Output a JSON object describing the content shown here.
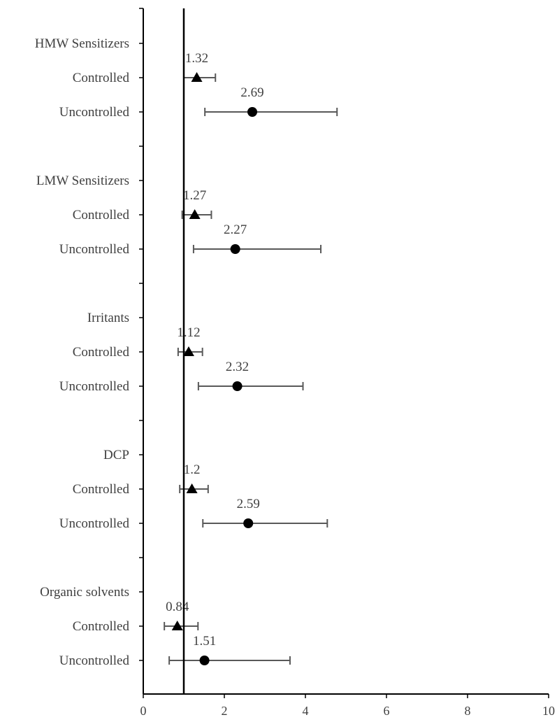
{
  "chart_data": {
    "type": "scatter",
    "subtype": "forest-plot",
    "title": "",
    "xlabel": "",
    "ylabel": "",
    "xlim": [
      0,
      10
    ],
    "x_ticks": [
      0,
      2,
      4,
      6,
      8,
      10
    ],
    "x_tick_labels": [
      "0",
      "2",
      "4",
      "6",
      "8",
      "10"
    ],
    "reference_line_x": 1,
    "grid": false,
    "legend": "none",
    "colors": {
      "marker": "#000000",
      "error_bar": "#595959",
      "axis": "#000000",
      "text": "#404040"
    },
    "groups": [
      {
        "name": "HMW Sensitizers",
        "rows": [
          {
            "label": "Controlled",
            "marker": "triangle",
            "estimate": 1.32,
            "value_label": "1.32",
            "ci": [
              1.0,
              1.78
            ]
          },
          {
            "label": "Uncontrolled",
            "marker": "circle",
            "estimate": 2.69,
            "value_label": "2.69",
            "ci": [
              1.52,
              4.78
            ]
          }
        ]
      },
      {
        "name": "LMW Sensitizers",
        "rows": [
          {
            "label": "Controlled ",
            "marker": "triangle",
            "estimate": 1.27,
            "value_label": "1.27",
            "ci": [
              0.96,
              1.68
            ]
          },
          {
            "label": "Uncontrolled",
            "marker": "circle",
            "estimate": 2.27,
            "value_label": "2.27",
            "ci": [
              1.24,
              4.38
            ]
          }
        ]
      },
      {
        "name": "Irritants",
        "rows": [
          {
            "label": "Controlled",
            "marker": "triangle",
            "estimate": 1.12,
            "value_label": "1.12",
            "ci": [
              0.86,
              1.46
            ]
          },
          {
            "label": "Uncontrolled",
            "marker": "circle",
            "estimate": 2.32,
            "value_label": "2.32",
            "ci": [
              1.36,
              3.94
            ]
          }
        ]
      },
      {
        "name": "DCP",
        "rows": [
          {
            "label": "Controlled",
            "marker": "triangle",
            "estimate": 1.2,
            "value_label": "1.2",
            "ci": [
              0.9,
              1.6
            ]
          },
          {
            "label": "Uncontrolled",
            "marker": "circle",
            "estimate": 2.59,
            "value_label": "2.59",
            "ci": [
              1.47,
              4.54
            ]
          }
        ]
      },
      {
        "name": "Organic solvents",
        "rows": [
          {
            "label": "Controlled",
            "marker": "triangle",
            "estimate": 0.84,
            "value_label": "0.84",
            "ci": [
              0.52,
              1.35
            ]
          },
          {
            "label": "Uncontrolled",
            "marker": "circle",
            "estimate": 1.51,
            "value_label": "1.51",
            "ci": [
              0.64,
              3.62
            ]
          }
        ]
      }
    ]
  }
}
